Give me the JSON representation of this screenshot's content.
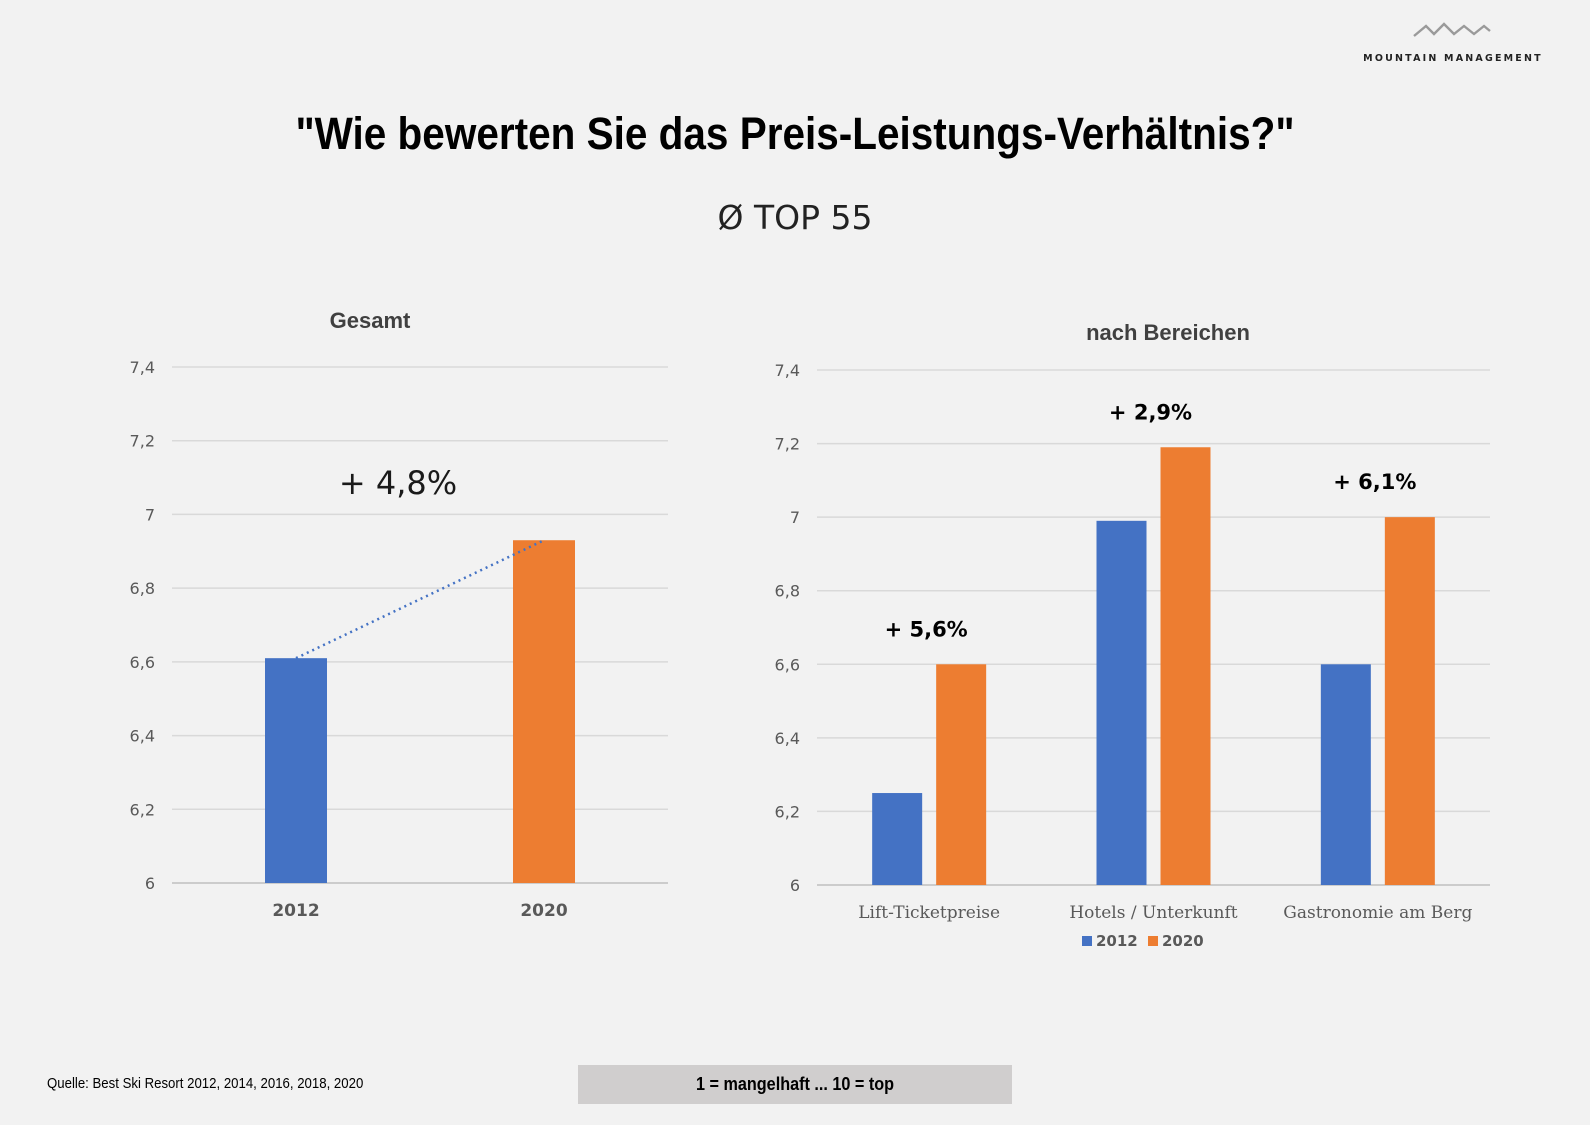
{
  "logo": {
    "text": "MOUNTAIN MANAGEMENT"
  },
  "title": "\"Wie bewerten Sie das Preis-Leistungs-Verhältnis?\"",
  "subtitle": "Ø TOP 55",
  "source": "Quelle: Best Ski Resort 2012, 2014, 2016, 2018, 2020",
  "scale_note": "1 = mangelhaft ... 10 = top",
  "colors": {
    "series_2012": "#4472c4",
    "series_2020": "#ed7d31",
    "grid": "#d9d9d9",
    "axis_text": "#595959"
  },
  "chart_data": [
    {
      "type": "bar",
      "title": "Gesamt",
      "categories": [
        "2012",
        "2020"
      ],
      "values": [
        6.61,
        6.93
      ],
      "ylim": [
        6,
        7.4
      ],
      "yticks": [
        "6",
        "6,2",
        "6,4",
        "6,6",
        "6,8",
        "7",
        "7,2",
        "7,4"
      ],
      "annotation": "+ 4,8%",
      "trendline": "dotted",
      "grid": true
    },
    {
      "type": "bar",
      "title": "nach Bereichen",
      "categories": [
        "Lift-Ticketpreise",
        "Hotels / Unterkunft",
        "Gastronomie am Berg"
      ],
      "series": [
        {
          "name": "2012",
          "values": [
            6.25,
            6.99,
            6.6
          ]
        },
        {
          "name": "2020",
          "values": [
            6.6,
            7.19,
            7.0
          ]
        }
      ],
      "annotations": [
        "+ 5,6%",
        "+ 2,9%",
        "+ 6,1%"
      ],
      "ylim": [
        6,
        7.4
      ],
      "yticks": [
        "6",
        "6,2",
        "6,4",
        "6,6",
        "6,8",
        "7",
        "7,2",
        "7,4"
      ],
      "legend": "bottom",
      "grid": true
    }
  ]
}
